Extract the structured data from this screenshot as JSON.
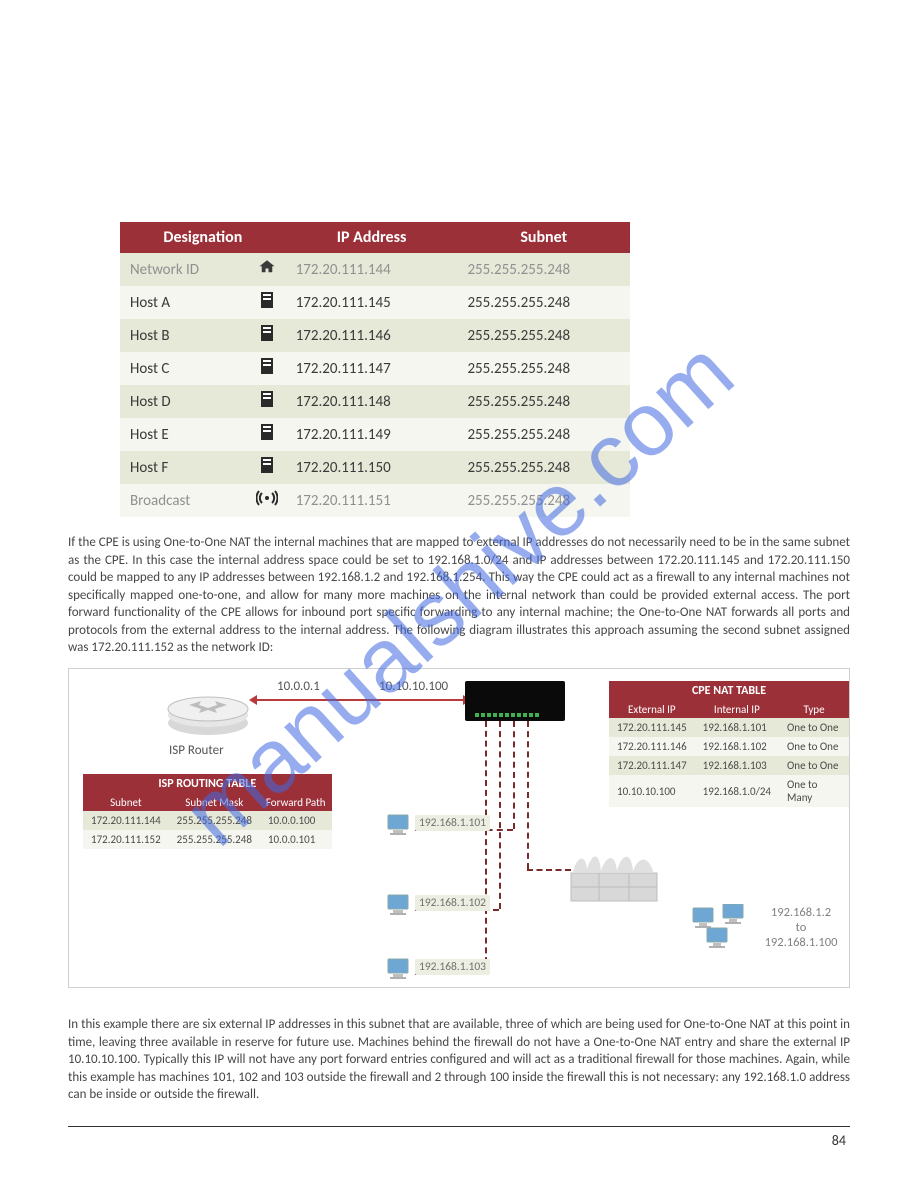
{
  "watermark": "manualshive.com",
  "subnet_table": {
    "headers": [
      "Designation",
      "IP Address",
      "Subnet"
    ],
    "rows": [
      {
        "label": "Network ID",
        "icon": "home",
        "ip": "172.20.111.144",
        "mask": "255.255.255.248",
        "tone": "gray",
        "band": "odd"
      },
      {
        "label": "Host A",
        "icon": "server",
        "ip": "172.20.111.145",
        "mask": "255.255.255.248",
        "tone": "dark",
        "band": "even"
      },
      {
        "label": "Host B",
        "icon": "server",
        "ip": "172.20.111.146",
        "mask": "255.255.255.248",
        "tone": "dark",
        "band": "odd"
      },
      {
        "label": "Host C",
        "icon": "server",
        "ip": "172.20.111.147",
        "mask": "255.255.255.248",
        "tone": "dark",
        "band": "even"
      },
      {
        "label": "Host D",
        "icon": "server",
        "ip": "172.20.111.148",
        "mask": "255.255.255.248",
        "tone": "dark",
        "band": "odd"
      },
      {
        "label": "Host E",
        "icon": "server",
        "ip": "172.20.111.149",
        "mask": "255.255.255.248",
        "tone": "dark",
        "band": "even"
      },
      {
        "label": "Host F",
        "icon": "server",
        "ip": "172.20.111.150",
        "mask": "255.255.255.248",
        "tone": "dark",
        "band": "odd"
      },
      {
        "label": "Broadcast",
        "icon": "broadcast",
        "ip": "172.20.111.151",
        "mask": "255.255.255.248",
        "tone": "gray",
        "band": "even"
      }
    ]
  },
  "para1": "If the CPE is using One-to-One NAT the internal machines that are mapped to external IP addresses do not necessarily need to be in the same subnet as the CPE. In this case the internal address space could be set to 192.168.1.0/24 and IP addresses between 172.20.111.145 and 172.20.111.150 could be mapped to any IP addresses between 192.168.1.2 and 192.168.1.254. This way the CPE could act as a firewall to any internal machines not specifically mapped one-to-one, and allow for many more machines on the internal network than could be provided external access. The port forward functionality of the CPE allows for inbound port specific forwarding to any internal machine; the One-to-One NAT forwards all ports and protocols from the external address to the internal address. The following diagram illustrates this approach assuming the second subnet assigned was 172.20.111.152 as the network ID:",
  "diagram": {
    "ip_left": "10.0.0.1",
    "ip_right": "10.10.10.100",
    "isp_router_label": "ISP Router",
    "isp_routing": {
      "title": "ISP ROUTING TABLE",
      "headers": [
        "Subnet",
        "Subnet Mask",
        "Forward Path"
      ],
      "rows": [
        {
          "a": "172.20.111.144",
          "b": "255.255.255.248",
          "c": "10.0.0.100",
          "band": "oddm"
        },
        {
          "a": "172.20.111.152",
          "b": "255.255.255.248",
          "c": "10.0.0.101",
          "band": "evenm"
        }
      ]
    },
    "cpe_nat": {
      "title": "CPE NAT TABLE",
      "headers": [
        "External IP",
        "Internal IP",
        "Type"
      ],
      "rows": [
        {
          "a": "172.20.111.145",
          "b": "192.168.1.101",
          "c": "One to One",
          "band": "oddm"
        },
        {
          "a": "172.20.111.146",
          "b": "192.168.1.102",
          "c": "One to One",
          "band": "evenm"
        },
        {
          "a": "172.20.111.147",
          "b": "192.168.1.103",
          "c": "One to One",
          "band": "oddm"
        },
        {
          "a": "10.10.10.100",
          "b": "192.168.1.0/24",
          "c": "One to Many",
          "band": "evenm"
        }
      ]
    },
    "pc_labels": {
      "pc1": "192.168.1.101",
      "pc2": "192.168.1.102",
      "pc3": "192.168.1.103"
    },
    "client_range": {
      "line1": "192.168.1.2",
      "line2": "to",
      "line3": "192.168.1.100"
    }
  },
  "para2": "In this example there are six external IP addresses in this subnet that are available, three of which are being used for One-to-One NAT at this point in time, leaving three available in reserve for future use. Machines behind the firewall do not have a One-to-One NAT entry and share the external IP 10.10.10.100. Typically this IP will not have any port forward entries configured and will act as a traditional firewall for those machines. Again, while this example has machines 101, 102 and 103 outside the firewall and 2 through 100 inside the firewall this is not necessary: any 192.168.1.0 address can be inside or outside the firewall.",
  "page_number": "84"
}
